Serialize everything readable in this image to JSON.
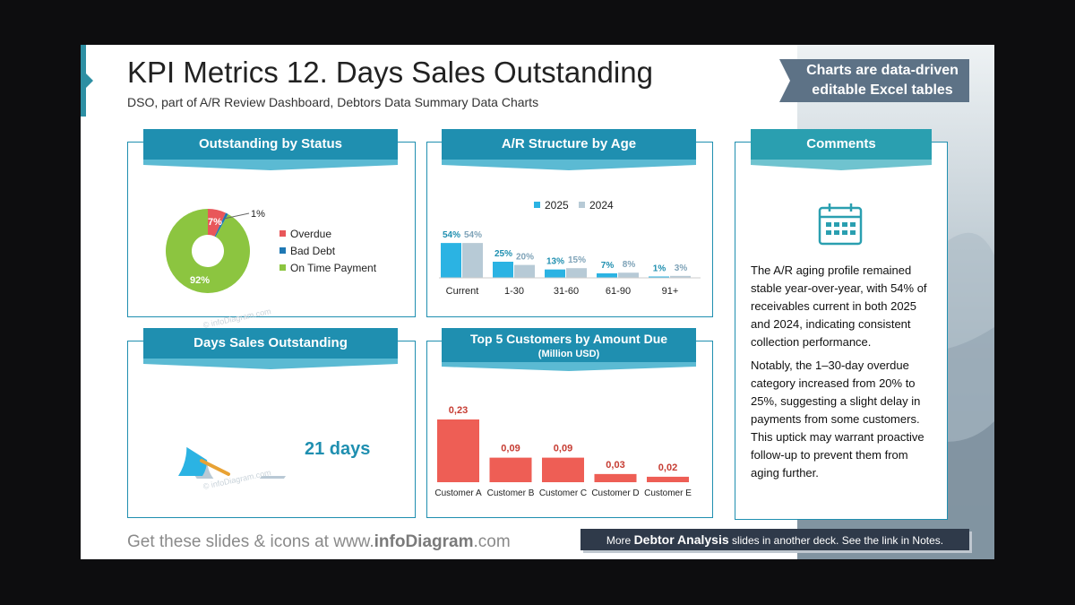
{
  "header": {
    "title": "KPI Metrics 12. Days Sales Outstanding",
    "subtitle": "DSO, part of A/R Review Dashboard, Debtors Data Summary Data Charts",
    "badge_line1": "Charts are data-driven",
    "badge_line2": "editable Excel tables"
  },
  "panels": {
    "status_title": "Outstanding by Status",
    "age_title": "A/R Structure by Age",
    "comments_title": "Comments",
    "dso_title": "Days Sales Outstanding",
    "customers_title": "Top 5 Customers by Amount Due",
    "customers_subtitle": "(Million USD)"
  },
  "dso": {
    "value_label": "21 days",
    "gauge_fraction": 0.18
  },
  "comments": {
    "icon": "calendar-icon",
    "para1": "The A/R aging profile remained stable year-over-year, with 54% of receivables current in both 2025 and 2024, indicating consistent collection performance.",
    "para2": "Notably, the 1–30-day overdue category increased from 20% to 25%, suggesting a slight delay in payments from some customers. This uptick may warrant proactive follow-up to prevent them from aging further."
  },
  "footer": {
    "prefix": "Get these slides & icons at www.",
    "brand": "infoDiagram",
    "suffix": ".com",
    "more_prefix": "More ",
    "more_bold": "Debtor Analysis",
    "more_suffix": " slides in another deck. See the link in Notes."
  },
  "watermark": "© infoDiagram.com",
  "colors": {
    "teal": "#1f8fb0",
    "overdue": "#e8575a",
    "bad_debt": "#1f78b4",
    "on_time": "#8cc540",
    "y2025": "#2bb3e3",
    "y2024": "#b7cad6",
    "customer_bar": "#ee5e55",
    "gauge_bg": "#b9c9d5",
    "needle": "#e8a234"
  },
  "chart_data": [
    {
      "type": "pie",
      "title": "Outstanding by Status",
      "categories": [
        "Overdue",
        "Bad Debt",
        "On Time Payment"
      ],
      "values": [
        7,
        1,
        92
      ],
      "labels": [
        "7%",
        "1%",
        "92%"
      ],
      "legend": "right"
    },
    {
      "type": "bar",
      "title": "A/R Structure by Age",
      "categories": [
        "Current",
        "1-30",
        "31-60",
        "61-90",
        "91+"
      ],
      "series": [
        {
          "name": "2025",
          "values": [
            54,
            25,
            13,
            7,
            1
          ],
          "labels": [
            "54%",
            "25%",
            "13%",
            "7%",
            "1%"
          ]
        },
        {
          "name": "2024",
          "values": [
            54,
            20,
            15,
            8,
            3
          ],
          "labels": [
            "54%",
            "20%",
            "15%",
            "8%",
            "3%"
          ]
        }
      ],
      "legend": "top"
    },
    {
      "type": "bar",
      "title": "Top 5 Customers by Amount Due",
      "categories": [
        "Customer A",
        "Customer B",
        "Customer C",
        "Customer D",
        "Customer E"
      ],
      "values": [
        0.23,
        0.09,
        0.09,
        0.03,
        0.02
      ],
      "labels": [
        "0,23",
        "0,09",
        "0,09",
        "0,03",
        "0,02"
      ]
    }
  ]
}
